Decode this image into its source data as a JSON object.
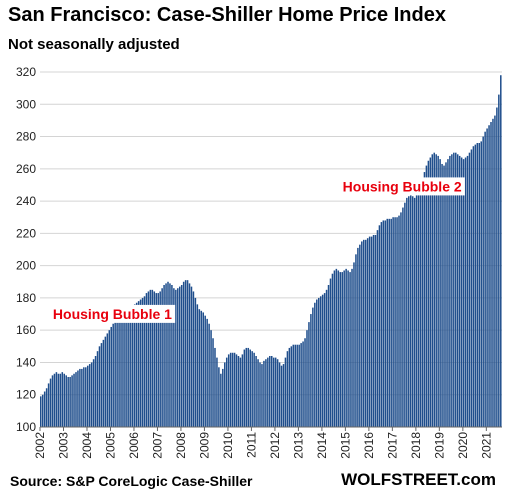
{
  "chart_data": {
    "type": "bar",
    "title": "San Francisco: Case-Shiller Home Price Index",
    "subtitle": "Not seasonally adjusted",
    "source": "Source: S&P CoreLogic Case-Shiller",
    "brand": "WOLFSTREET.com",
    "xlabel": "",
    "ylabel": "",
    "ylim": [
      100,
      320
    ],
    "yticks": [
      100,
      120,
      140,
      160,
      180,
      200,
      220,
      240,
      260,
      280,
      300,
      320
    ],
    "xticks": [
      "2002",
      "2003",
      "2004",
      "2005",
      "2006",
      "2007",
      "2008",
      "2009",
      "2010",
      "2011",
      "2012",
      "2013",
      "2014",
      "2015",
      "2016",
      "2017",
      "2018",
      "2019",
      "2020",
      "2021"
    ],
    "grid": true,
    "bar_color": "#1f4e8c",
    "annotation_color": "#e8000d",
    "annotations": [
      {
        "text": "Housing Bubble 1",
        "date": "2005-02",
        "value": 167
      },
      {
        "text": "Housing Bubble 2",
        "date": "2017-06",
        "value": 246
      }
    ],
    "start": "2002-01",
    "frequency": "monthly",
    "values": [
      119,
      120,
      122,
      124,
      127,
      130,
      132,
      133,
      134,
      133,
      133,
      134,
      133,
      132,
      131,
      131,
      132,
      133,
      134,
      135,
      136,
      136,
      137,
      137,
      138,
      139,
      140,
      142,
      144,
      147,
      150,
      152,
      154,
      156,
      158,
      160,
      162,
      164,
      165,
      167,
      168,
      169,
      170,
      171,
      172,
      173,
      174,
      175,
      176,
      177,
      178,
      179,
      180,
      181,
      183,
      184,
      185,
      185,
      184,
      183,
      183,
      184,
      186,
      188,
      189,
      190,
      189,
      188,
      186,
      185,
      186,
      187,
      188,
      190,
      191,
      191,
      189,
      187,
      184,
      180,
      176,
      173,
      172,
      171,
      169,
      167,
      164,
      160,
      155,
      149,
      143,
      137,
      133,
      136,
      140,
      143,
      145,
      146,
      146,
      146,
      145,
      144,
      143,
      145,
      148,
      149,
      149,
      148,
      147,
      146,
      144,
      142,
      140,
      139,
      141,
      142,
      143,
      144,
      144,
      143,
      143,
      142,
      140,
      138,
      139,
      143,
      147,
      149,
      150,
      151,
      151,
      151,
      151,
      152,
      153,
      155,
      160,
      165,
      170,
      174,
      177,
      179,
      180,
      181,
      182,
      183,
      185,
      188,
      192,
      195,
      197,
      198,
      197,
      196,
      196,
      197,
      198,
      197,
      196,
      198,
      202,
      207,
      211,
      213,
      215,
      216,
      216,
      217,
      218,
      218,
      219,
      219,
      222,
      225,
      227,
      228,
      228,
      229,
      229,
      229,
      230,
      230,
      230,
      231,
      233,
      236,
      239,
      242,
      243,
      244,
      243,
      242,
      244,
      246,
      250,
      254,
      258,
      262,
      265,
      267,
      269,
      270,
      269,
      268,
      266,
      263,
      262,
      264,
      266,
      268,
      269,
      270,
      270,
      269,
      268,
      267,
      266,
      267,
      268,
      270,
      272,
      274,
      275,
      276,
      276,
      277,
      280,
      283,
      285,
      287,
      289,
      291,
      293,
      298,
      306,
      318
    ]
  }
}
